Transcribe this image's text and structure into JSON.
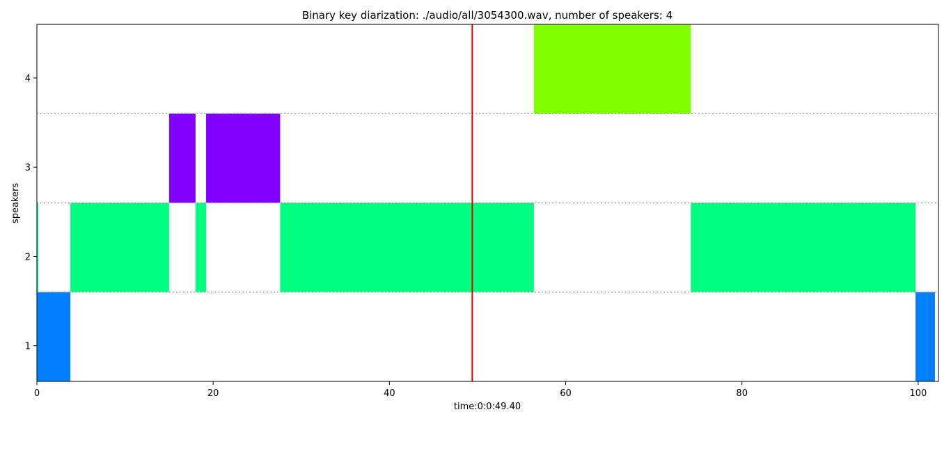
{
  "chart_data": {
    "type": "bar",
    "title": "Binary key diarization: ./audio/all/3054300.wav, number of speakers: 4",
    "xlabel": "time:0:0:49.40",
    "ylabel": "speakers",
    "xlim": [
      0,
      102.3
    ],
    "ylim": [
      0.6,
      4.6
    ],
    "xticks": [
      0,
      20,
      40,
      60,
      80,
      100
    ],
    "yticks": [
      1,
      2,
      3,
      4
    ],
    "grid": false,
    "speaker_boundaries": [
      1.6,
      2.6,
      3.6
    ],
    "cursor_time": 49.4,
    "cursor_color": "#e00000",
    "series": [
      {
        "speaker": 1,
        "color": "#0080ff",
        "segments": [
          [
            0,
            3.8
          ],
          [
            99.7,
            101.9
          ]
        ]
      },
      {
        "speaker": 2,
        "color": "#00ff80",
        "segments": [
          [
            0,
            0.15
          ],
          [
            3.8,
            15.0
          ],
          [
            18.0,
            19.2
          ],
          [
            27.6,
            56.4
          ],
          [
            74.2,
            99.7
          ]
        ]
      },
      {
        "speaker": 3,
        "color": "#8000ff",
        "segments": [
          [
            15.0,
            18.0
          ],
          [
            19.2,
            27.6
          ]
        ]
      },
      {
        "speaker": 4,
        "color": "#80ff00",
        "segments": [
          [
            56.4,
            74.2
          ]
        ]
      }
    ]
  }
}
